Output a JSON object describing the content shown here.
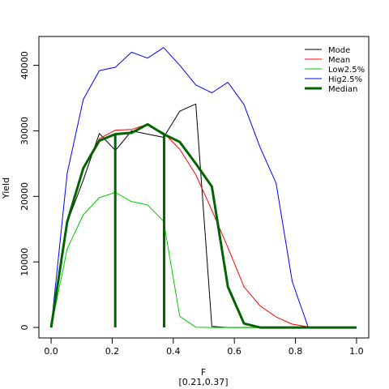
{
  "chart_data": {
    "type": "line",
    "xlabel": "F",
    "xlabel_sub": "[0.21,0.37]",
    "ylabel": "Yield",
    "xlim": [
      -0.04,
      1.04
    ],
    "ylim": [
      -1600,
      44400
    ],
    "xticks": [
      0.0,
      0.2,
      0.4,
      0.6,
      0.8,
      1.0
    ],
    "xtick_labels": [
      "0.0",
      "0.2",
      "0.4",
      "0.6",
      "0.8",
      "1.0"
    ],
    "yticks": [
      0,
      10000,
      20000,
      30000,
      40000
    ],
    "ytick_labels": [
      "0",
      "10000",
      "20000",
      "30000",
      "40000"
    ],
    "grid": false,
    "legend_position": "top-right",
    "x": [
      0.0,
      0.0526,
      0.1053,
      0.1579,
      0.2105,
      0.2632,
      0.3158,
      0.3684,
      0.4211,
      0.4737,
      0.5263,
      0.5789,
      0.6316,
      0.6842,
      0.7368,
      0.7895,
      0.8421,
      0.8947,
      0.9474,
      1.0
    ],
    "series": [
      {
        "name": "Mode",
        "color": "#000000",
        "width": 1,
        "values": [
          0,
          16000,
          22500,
          29600,
          27000,
          30000,
          29500,
          29000,
          33000,
          34100,
          150,
          0,
          0,
          0,
          0,
          0,
          0,
          0,
          0,
          0
        ]
      },
      {
        "name": "Mean",
        "color": "#ff0000",
        "width": 1,
        "values": [
          0,
          16200,
          24500,
          28800,
          30100,
          30200,
          31000,
          29700,
          27200,
          23300,
          17900,
          12200,
          6200,
          3300,
          1600,
          500,
          100,
          0,
          0,
          0
        ]
      },
      {
        "name": "Low2.5%",
        "color": "#00cc00",
        "width": 1,
        "values": [
          0,
          12000,
          17200,
          19800,
          20600,
          19200,
          18700,
          16200,
          1700,
          50,
          0,
          0,
          0,
          0,
          0,
          0,
          0,
          0,
          0,
          0
        ]
      },
      {
        "name": "Hig2.5%",
        "color": "#0000ff",
        "width": 1,
        "values": [
          0,
          23500,
          34800,
          39200,
          39700,
          42000,
          41100,
          42700,
          40000,
          37000,
          35800,
          37400,
          34000,
          27500,
          22000,
          7000,
          0,
          0,
          0,
          0
        ]
      },
      {
        "name": "Median",
        "color": "#006400",
        "width": 3,
        "values": [
          0,
          16100,
          24300,
          28500,
          29500,
          29700,
          31000,
          29500,
          28300,
          25000,
          21500,
          6200,
          600,
          0,
          0,
          0,
          0,
          0,
          0,
          0
        ]
      }
    ],
    "vlines": [
      {
        "x": 0.21,
        "y0": 0,
        "y1": 29500,
        "color": "#006400"
      },
      {
        "x": 0.37,
        "y0": 0,
        "y1": 29500,
        "color": "#006400"
      }
    ]
  }
}
